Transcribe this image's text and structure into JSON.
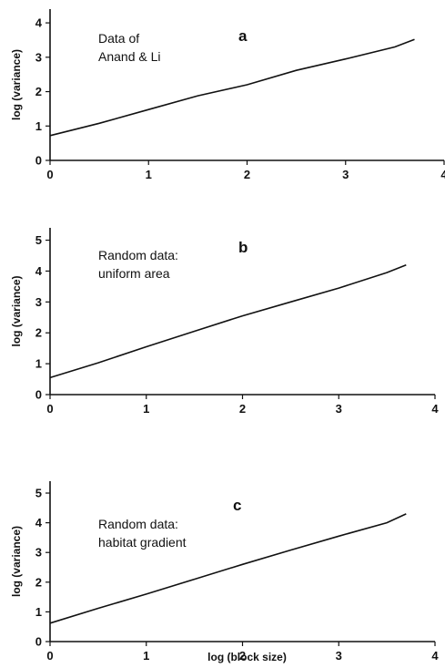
{
  "chart_data": [
    {
      "type": "line",
      "panel_label": "a",
      "annotation": [
        "Data of",
        "Anand & Li"
      ],
      "ylabel": "log (variance)",
      "xlabel": "",
      "xlim": [
        0,
        4
      ],
      "ylim": [
        0,
        4.4
      ],
      "xticks": [
        0,
        1,
        2,
        3,
        4
      ],
      "yticks": [
        0,
        1,
        2,
        3,
        4
      ],
      "grid": false,
      "series": [
        {
          "x": [
            0,
            0.5,
            1,
            1.5,
            2,
            2.5,
            3,
            3.5,
            3.7
          ],
          "y": [
            0.72,
            1.08,
            1.48,
            1.88,
            2.2,
            2.62,
            2.95,
            3.3,
            3.52
          ]
        }
      ]
    },
    {
      "type": "line",
      "panel_label": "b",
      "annotation": [
        "Random data:",
        "uniform area"
      ],
      "ylabel": "log (variance)",
      "xlabel": "",
      "xlim": [
        0,
        4
      ],
      "ylim": [
        0,
        5.4
      ],
      "xticks": [
        0,
        1,
        2,
        3,
        4
      ],
      "yticks": [
        0,
        1,
        2,
        3,
        4,
        5
      ],
      "grid": false,
      "series": [
        {
          "x": [
            0,
            0.5,
            1,
            1.5,
            2,
            2.5,
            3,
            3.5,
            3.7
          ],
          "y": [
            0.55,
            1.03,
            1.55,
            2.05,
            2.55,
            3.0,
            3.45,
            3.95,
            4.2
          ]
        }
      ]
    },
    {
      "type": "line",
      "panel_label": "c",
      "annotation": [
        "Random data:",
        "habitat gradient"
      ],
      "ylabel": "log (variance)",
      "xlabel": "log (block size)",
      "xlim": [
        0,
        4
      ],
      "ylim": [
        0,
        5.4
      ],
      "xticks": [
        0,
        1,
        2,
        3,
        4
      ],
      "yticks": [
        0,
        1,
        2,
        3,
        4,
        5
      ],
      "grid": false,
      "series": [
        {
          "x": [
            0,
            0.5,
            1,
            1.5,
            2,
            2.5,
            3,
            3.5,
            3.7
          ],
          "y": [
            0.62,
            1.12,
            1.6,
            2.1,
            2.6,
            3.08,
            3.55,
            4.0,
            4.3
          ]
        }
      ]
    }
  ]
}
